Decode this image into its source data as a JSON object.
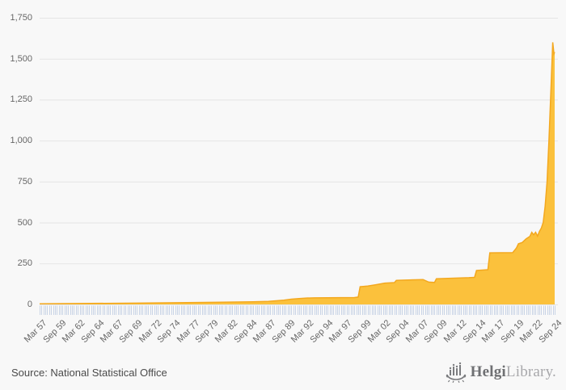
{
  "footer": {
    "source_text": "Source: National Statistical Office",
    "logo": {
      "icon": "viking-ship-bar-chart-icon",
      "name_bold": "Helgi",
      "name_light": "Library."
    }
  },
  "colors": {
    "background": "#f8f8f8",
    "grid": "#e5e5e5",
    "area_fill": "#fbc13c",
    "area_line": "#f3a81f",
    "minor_tick": "#c9d4e6",
    "axis_text": "#666666",
    "source_text": "#4a4a4a",
    "logo_dark": "#7b7c7f",
    "logo_light": "#a8a8ab"
  },
  "chart_data": {
    "type": "area",
    "title": "",
    "xlabel": "",
    "ylabel": "",
    "grid": true,
    "legend": false,
    "ylim": [
      0,
      1750
    ],
    "y_tick_values": [
      0,
      250,
      500,
      750,
      1000,
      1250,
      1500,
      1750
    ],
    "y_tick_labels": [
      "0",
      "250",
      "500",
      "750",
      "1,000",
      "1,250",
      "1,500",
      "1,750"
    ],
    "x_domain": [
      1957.0,
      2024.5
    ],
    "x_domain_note": "Mar 57 to Sep 24, minor tick each quarter, label every 2.5 years",
    "x_minor_tick_step": 0.25,
    "x_label_step": 2.5,
    "x_tick_labels": [
      "Mar 57",
      "Sep 59",
      "Mar 62",
      "Sep 64",
      "Mar 67",
      "Sep 69",
      "Mar 72",
      "Sep 74",
      "Mar 77",
      "Sep 79",
      "Mar 82",
      "Sep 84",
      "Mar 87",
      "Sep 89",
      "Mar 92",
      "Sep 94",
      "Mar 97",
      "Sep 99",
      "Mar 02",
      "Sep 04",
      "Mar 07",
      "Sep 09",
      "Mar 12",
      "Sep 14",
      "Mar 17",
      "Sep 19",
      "Mar 22",
      "Sep 24"
    ],
    "series": [
      {
        "name": "value",
        "fill_color": "#fbc13c",
        "line_color": "#f3a81f",
        "points": [
          [
            1957.0,
            4
          ],
          [
            1970.0,
            8
          ],
          [
            1980.0,
            13
          ],
          [
            1985.0,
            16
          ],
          [
            1987.0,
            18
          ],
          [
            1989.0,
            26
          ],
          [
            1990.0,
            32
          ],
          [
            1991.0,
            36
          ],
          [
            1992.0,
            39
          ],
          [
            1993.0,
            40
          ],
          [
            1998.25,
            42
          ],
          [
            1998.75,
            45
          ],
          [
            1999.0,
            108
          ],
          [
            2000.0,
            112
          ],
          [
            2001.0,
            120
          ],
          [
            2002.25,
            130
          ],
          [
            2003.5,
            133
          ],
          [
            2003.75,
            147
          ],
          [
            2007.25,
            152
          ],
          [
            2008.0,
            136
          ],
          [
            2008.75,
            134
          ],
          [
            2009.0,
            157
          ],
          [
            2013.25,
            163
          ],
          [
            2014.0,
            165
          ],
          [
            2014.25,
            207
          ],
          [
            2015.75,
            212
          ],
          [
            2016.0,
            315
          ],
          [
            2019.0,
            316
          ],
          [
            2019.5,
            345
          ],
          [
            2019.75,
            370
          ],
          [
            2020.25,
            378
          ],
          [
            2020.75,
            400
          ],
          [
            2021.25,
            415
          ],
          [
            2021.5,
            440
          ],
          [
            2021.75,
            425
          ],
          [
            2022.0,
            440
          ],
          [
            2022.25,
            417
          ],
          [
            2022.5,
            445
          ],
          [
            2022.75,
            466
          ],
          [
            2023.0,
            500
          ],
          [
            2023.25,
            600
          ],
          [
            2023.5,
            750
          ],
          [
            2023.75,
            1000
          ],
          [
            2024.0,
            1300
          ],
          [
            2024.25,
            1600
          ],
          [
            2024.4,
            1530
          ],
          [
            2024.5,
            1540
          ]
        ]
      }
    ]
  }
}
